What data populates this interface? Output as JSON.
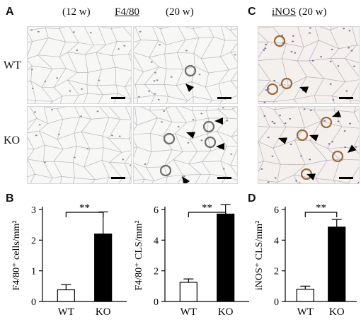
{
  "panels": {
    "A": {
      "letter": "A",
      "header_left": "(12 w)",
      "header_mid": "F4/80",
      "header_right": "(20 w)",
      "row_labels": [
        "WT",
        "KO"
      ]
    },
    "B": {
      "letter": "B"
    },
    "C": {
      "letter": "C",
      "header_underlined": "iNOS",
      "header_rest": " (20 w)"
    },
    "D": {
      "letter": "D"
    }
  },
  "colors": {
    "wt_bar": "#ffffff",
    "ko_bar": "#000000",
    "membrane": "#b7b7bd",
    "stain_brown": "#9a6a3a",
    "stain_gray": "#6d6d6d",
    "arrow": "#000000"
  },
  "chart_data": [
    {
      "type": "bar",
      "panel": "B",
      "categories": [
        "WT",
        "KO"
      ],
      "values": [
        0.38,
        2.2
      ],
      "errors": [
        0.17,
        0.72
      ],
      "ylabel": "F4/80⁺ cells/mm²",
      "ylim": [
        0,
        3
      ],
      "yticks": [
        0,
        1,
        2,
        3
      ],
      "significance": "**"
    },
    {
      "type": "bar",
      "panel": "B",
      "categories": [
        "WT",
        "KO"
      ],
      "values": [
        1.25,
        5.7
      ],
      "errors": [
        0.22,
        0.62
      ],
      "ylabel": "F4/80⁺ CLS/mm²",
      "ylim": [
        0,
        6
      ],
      "yticks": [
        0,
        2,
        4,
        6
      ],
      "significance": "**"
    },
    {
      "type": "bar",
      "panel": "D",
      "categories": [
        "WT",
        "KO"
      ],
      "values": [
        0.8,
        4.85
      ],
      "errors": [
        0.2,
        0.5
      ],
      "ylabel": "iNOS⁺ CLS/mm²",
      "ylim": [
        0,
        6
      ],
      "yticks": [
        0,
        2,
        4,
        6
      ],
      "significance": "**"
    }
  ]
}
